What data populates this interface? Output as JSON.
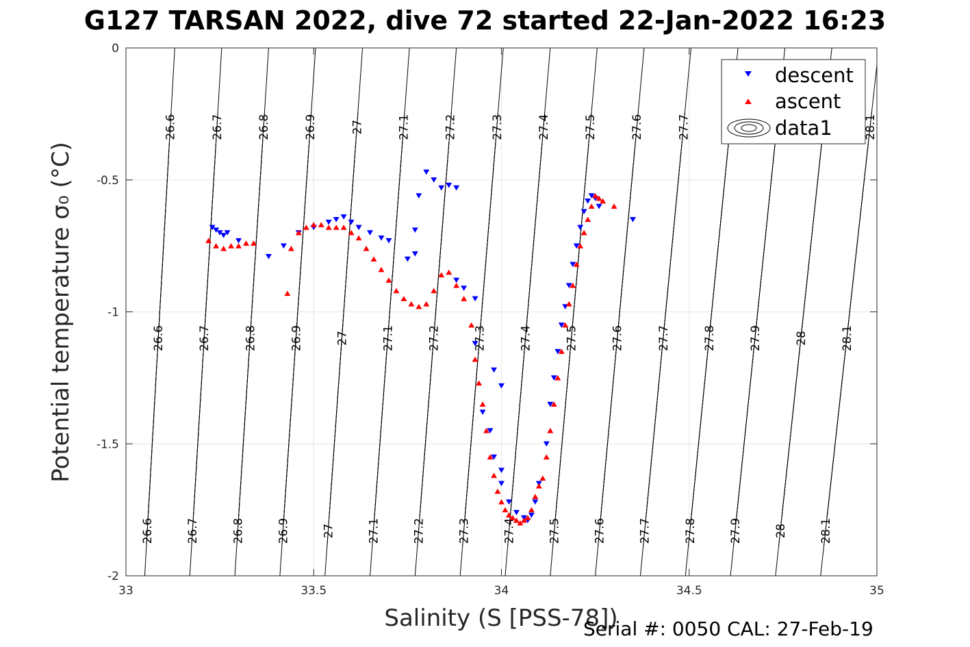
{
  "title": "G127 TARSAN 2022, dive 72 started 22-Jan-2022 16:23",
  "footer": "Serial #: 0050  CAL: 27-Feb-19",
  "chart_data": {
    "type": "scatter",
    "title": "G127 TARSAN 2022, dive 72 started 22-Jan-2022 16:23",
    "xlabel": "Salinity (S [PSS-78])",
    "ylabel": "Potential temperature σ₀ (°C)",
    "xlim": [
      33,
      35
    ],
    "ylim": [
      -2,
      0
    ],
    "xticks": [
      "33",
      "33.5",
      "34",
      "34.5",
      "35"
    ],
    "yticks": [
      "0",
      "-0.5",
      "-1",
      "-1.5",
      "-2"
    ],
    "grid": true,
    "legend_position": "top-right",
    "legend": [
      "descent",
      "ascent",
      "data1"
    ],
    "contour_levels": [
      26.6,
      26.7,
      26.8,
      26.9,
      27,
      27.1,
      27.2,
      27.3,
      27.4,
      27.5,
      27.6,
      27.7,
      27.8,
      27.9,
      28,
      28.1
    ],
    "contour_labels": [
      "26.6",
      "26.7",
      "26.8",
      "26.9",
      "27",
      "27.1",
      "27.2",
      "27.3",
      "27.4",
      "27.5",
      "27.6",
      "27.7",
      "27.8",
      "27.9",
      "28",
      "28.1"
    ],
    "contour_x_at_top": [
      33.13,
      33.255,
      33.38,
      33.505,
      33.63,
      33.755,
      33.88,
      34.005,
      34.13,
      34.255,
      34.38,
      34.505,
      34.63,
      34.755,
      34.88,
      35.005
    ],
    "contour_x_at_bottom": [
      33.05,
      33.17,
      33.29,
      33.41,
      33.53,
      33.65,
      33.77,
      33.89,
      34.01,
      34.13,
      34.25,
      34.37,
      34.49,
      34.61,
      34.73,
      34.85
    ],
    "series": [
      {
        "name": "descent",
        "color": "#0000ff",
        "marker": "triangle-down",
        "x": [
          33.23,
          33.24,
          33.25,
          33.26,
          33.27,
          33.3,
          33.38,
          33.42,
          33.46,
          33.5,
          33.54,
          33.56,
          33.58,
          33.6,
          33.62,
          33.65,
          33.68,
          33.7,
          33.75,
          33.77,
          33.78,
          33.8,
          33.82,
          33.84,
          33.86,
          33.88,
          33.77,
          33.88,
          33.9,
          33.93,
          33.93,
          33.95,
          33.97,
          33.98,
          34.0,
          34.0,
          34.02,
          34.04,
          34.06,
          34.07,
          34.08,
          34.09,
          34.1,
          34.12,
          34.13,
          34.14,
          34.15,
          34.16,
          34.17,
          34.18,
          34.19,
          34.2,
          34.21,
          34.22,
          34.23,
          34.24,
          34.25,
          34.26,
          34.35,
          33.98,
          34.0
        ],
        "y": [
          -0.68,
          -0.69,
          -0.7,
          -0.71,
          -0.7,
          -0.73,
          -0.79,
          -0.75,
          -0.7,
          -0.68,
          -0.66,
          -0.65,
          -0.64,
          -0.66,
          -0.68,
          -0.7,
          -0.72,
          -0.73,
          -0.8,
          -0.69,
          -0.56,
          -0.47,
          -0.5,
          -0.53,
          -0.52,
          -0.53,
          -0.78,
          -0.88,
          -0.91,
          -0.95,
          -1.12,
          -1.38,
          -1.45,
          -1.55,
          -1.6,
          -1.65,
          -1.72,
          -1.76,
          -1.78,
          -1.79,
          -1.77,
          -1.72,
          -1.65,
          -1.5,
          -1.35,
          -1.25,
          -1.15,
          -1.05,
          -0.98,
          -0.9,
          -0.82,
          -0.75,
          -0.68,
          -0.62,
          -0.58,
          -0.56,
          -0.57,
          -0.6,
          -0.65,
          -1.22,
          -1.28
        ]
      },
      {
        "name": "ascent",
        "color": "#ff0000",
        "marker": "triangle-up",
        "x": [
          33.22,
          33.24,
          33.26,
          33.28,
          33.3,
          33.32,
          33.34,
          33.43,
          33.44,
          33.46,
          33.48,
          33.5,
          33.52,
          33.54,
          33.56,
          33.58,
          33.6,
          33.62,
          33.64,
          33.66,
          33.68,
          33.7,
          33.72,
          33.74,
          33.76,
          33.78,
          33.8,
          33.82,
          33.84,
          33.86,
          33.88,
          33.9,
          33.92,
          33.93,
          33.94,
          33.95,
          33.96,
          33.97,
          33.98,
          33.99,
          34.0,
          34.01,
          34.02,
          34.03,
          34.04,
          34.05,
          34.06,
          34.07,
          34.08,
          34.09,
          34.1,
          34.11,
          34.12,
          34.13,
          34.14,
          34.15,
          34.16,
          34.17,
          34.18,
          34.19,
          34.2,
          34.21,
          34.22,
          34.23,
          34.24,
          34.25,
          34.26,
          34.27,
          34.3
        ],
        "y": [
          -0.73,
          -0.75,
          -0.76,
          -0.75,
          -0.75,
          -0.74,
          -0.74,
          -0.93,
          -0.76,
          -0.7,
          -0.68,
          -0.67,
          -0.67,
          -0.68,
          -0.68,
          -0.68,
          -0.7,
          -0.72,
          -0.76,
          -0.8,
          -0.84,
          -0.88,
          -0.92,
          -0.95,
          -0.97,
          -0.98,
          -0.97,
          -0.92,
          -0.86,
          -0.85,
          -0.9,
          -0.95,
          -1.05,
          -1.18,
          -1.27,
          -1.35,
          -1.45,
          -1.55,
          -1.62,
          -1.68,
          -1.72,
          -1.75,
          -1.77,
          -1.78,
          -1.79,
          -1.8,
          -1.79,
          -1.78,
          -1.75,
          -1.7,
          -1.66,
          -1.63,
          -1.55,
          -1.45,
          -1.35,
          -1.25,
          -1.15,
          -1.05,
          -0.97,
          -0.9,
          -0.82,
          -0.75,
          -0.7,
          -0.65,
          -0.6,
          -0.56,
          -0.57,
          -0.58,
          -0.6
        ]
      }
    ]
  }
}
